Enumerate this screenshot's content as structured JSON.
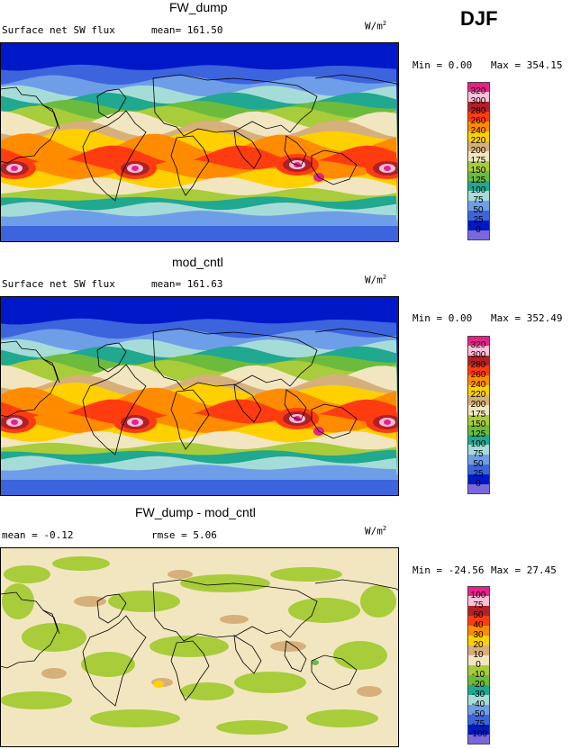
{
  "season": "DJF",
  "units_base": "W/m",
  "units_exp": "2",
  "panels": [
    {
      "title": "FW_dump",
      "left_text": "Surface net SW flux",
      "mean_text": "mean= 161.50",
      "rmse_text": "",
      "min_text": "Min =   0.00",
      "max_text": "Max = 354.15",
      "colorbar": {
        "colors": [
          "#e8208a",
          "#ffc0d8",
          "#b02028",
          "#ff3c10",
          "#ff8c00",
          "#ffd000",
          "#d6b07a",
          "#f2e6c0",
          "#a8cc3a",
          "#6cbb3c",
          "#20a890",
          "#a6dcd8",
          "#6f9ee8",
          "#3c64dc",
          "#0018c8",
          "#7a68dc"
        ],
        "labels": [
          "320",
          "300",
          "280",
          "260",
          "240",
          "220",
          "200",
          "175",
          "150",
          "125",
          "100",
          "75",
          "50",
          "25",
          "0"
        ]
      },
      "chart_data": {
        "type": "heatmap",
        "title": "FW_dump",
        "subtitle": "Surface net SW flux",
        "statistics": {
          "mean": 161.5,
          "min": 0.0,
          "max": 354.15
        },
        "units": "W/m2",
        "levels": [
          0,
          25,
          50,
          75,
          100,
          125,
          150,
          175,
          200,
          220,
          240,
          260,
          280,
          300,
          320
        ]
      }
    },
    {
      "title": "mod_cntl",
      "left_text": "Surface net SW flux",
      "mean_text": "mean= 161.63",
      "rmse_text": "",
      "min_text": "Min =   0.00",
      "max_text": "Max = 352.49",
      "colorbar": {
        "colors": [
          "#e8208a",
          "#ffc0d8",
          "#b02028",
          "#ff3c10",
          "#ff8c00",
          "#ffd000",
          "#d6b07a",
          "#f2e6c0",
          "#a8cc3a",
          "#6cbb3c",
          "#20a890",
          "#a6dcd8",
          "#6f9ee8",
          "#3c64dc",
          "#0018c8",
          "#7a68dc"
        ],
        "labels": [
          "320",
          "300",
          "280",
          "260",
          "240",
          "220",
          "200",
          "175",
          "150",
          "125",
          "100",
          "75",
          "50",
          "25",
          "0"
        ]
      },
      "chart_data": {
        "type": "heatmap",
        "title": "mod_cntl",
        "subtitle": "Surface net SW flux",
        "statistics": {
          "mean": 161.63,
          "min": 0.0,
          "max": 352.49
        },
        "units": "W/m2",
        "levels": [
          0,
          25,
          50,
          75,
          100,
          125,
          150,
          175,
          200,
          220,
          240,
          260,
          280,
          300,
          320
        ]
      }
    },
    {
      "title": "FW_dump - mod_cntl",
      "left_text": "mean =  -0.12",
      "mean_text": "",
      "rmse_text": "rmse =   5.06",
      "min_text": "Min = -24.56",
      "max_text": "Max =  27.45",
      "colorbar": {
        "colors": [
          "#e8208a",
          "#ffc0d8",
          "#b02028",
          "#ff3c10",
          "#ff8c00",
          "#ffd000",
          "#d6b07a",
          "#f2e6c0",
          "#a8cc3a",
          "#6cbb3c",
          "#20a890",
          "#a6dcd8",
          "#6f9ee8",
          "#3c64dc",
          "#0018c8",
          "#7a68dc"
        ],
        "labels": [
          "100",
          "75",
          "50",
          "40",
          "30",
          "20",
          "10",
          "0",
          "-10",
          "-20",
          "-30",
          "-40",
          "-50",
          "-75",
          "-100"
        ]
      },
      "chart_data": {
        "type": "heatmap",
        "title": "FW_dump - mod_cntl",
        "statistics": {
          "mean": -0.12,
          "rmse": 5.06,
          "min": -24.56,
          "max": 27.45
        },
        "units": "W/m2",
        "levels": [
          -100,
          -75,
          -50,
          -40,
          -30,
          -20,
          -10,
          0,
          10,
          20,
          30,
          40,
          50,
          75,
          100
        ]
      }
    }
  ]
}
